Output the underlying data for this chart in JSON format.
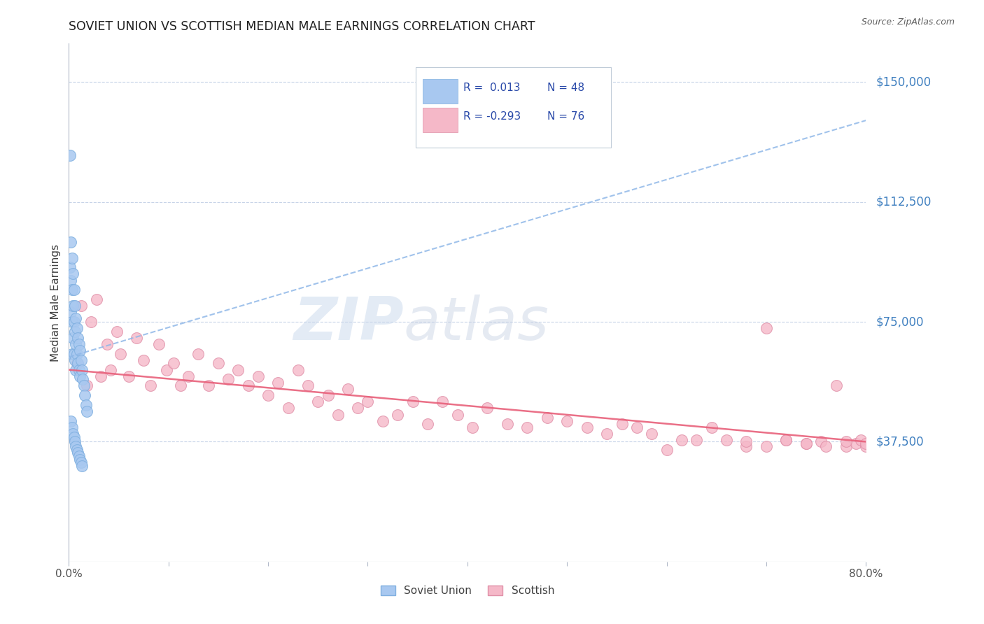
{
  "title": "SOVIET UNION VS SCOTTISH MEDIAN MALE EARNINGS CORRELATION CHART",
  "source": "Source: ZipAtlas.com",
  "ylabel": "Median Male Earnings",
  "y_tick_vals": [
    37500,
    75000,
    112500,
    150000
  ],
  "y_tick_labels": [
    "$37,500",
    "$75,000",
    "$112,500",
    "$150,000"
  ],
  "blue_color": "#a8c8f0",
  "blue_edge_color": "#80b0e0",
  "blue_line_color": "#90b8e8",
  "pink_color": "#f5b8c8",
  "pink_edge_color": "#e090a8",
  "pink_line_color": "#e8607a",
  "background_color": "#ffffff",
  "grid_color": "#c8d4e8",
  "title_color": "#202020",
  "ylabel_color": "#404040",
  "right_label_color": "#4080c0",
  "source_color": "#606060",
  "watermark_color": "#d8e4f0",
  "legend_R1": " 0.013",
  "legend_N1": "48",
  "legend_R2": "-0.293",
  "legend_N2": "76",
  "soviet_x": [
    0.001,
    0.001,
    0.002,
    0.002,
    0.002,
    0.003,
    0.003,
    0.003,
    0.003,
    0.004,
    0.004,
    0.004,
    0.005,
    0.005,
    0.005,
    0.006,
    0.006,
    0.006,
    0.007,
    0.007,
    0.007,
    0.008,
    0.008,
    0.009,
    0.009,
    0.01,
    0.01,
    0.011,
    0.011,
    0.012,
    0.013,
    0.014,
    0.015,
    0.016,
    0.017,
    0.018,
    0.002,
    0.003,
    0.004,
    0.005,
    0.006,
    0.007,
    0.008,
    0.009,
    0.01,
    0.011,
    0.012,
    0.013
  ],
  "soviet_y": [
    127000,
    92000,
    100000,
    88000,
    78000,
    95000,
    85000,
    75000,
    65000,
    90000,
    80000,
    70000,
    85000,
    75000,
    65000,
    80000,
    72000,
    63000,
    76000,
    68000,
    60000,
    73000,
    65000,
    70000,
    62000,
    68000,
    60000,
    66000,
    58000,
    63000,
    60000,
    57000,
    55000,
    52000,
    49000,
    47000,
    44000,
    42000,
    40000,
    39000,
    37500,
    36000,
    35000,
    34000,
    33000,
    32000,
    31000,
    30000
  ],
  "scottish_x": [
    0.008,
    0.012,
    0.018,
    0.022,
    0.028,
    0.032,
    0.038,
    0.042,
    0.048,
    0.052,
    0.06,
    0.068,
    0.075,
    0.082,
    0.09,
    0.098,
    0.105,
    0.112,
    0.12,
    0.13,
    0.14,
    0.15,
    0.16,
    0.17,
    0.18,
    0.19,
    0.2,
    0.21,
    0.22,
    0.23,
    0.24,
    0.25,
    0.26,
    0.27,
    0.28,
    0.29,
    0.3,
    0.315,
    0.33,
    0.345,
    0.36,
    0.375,
    0.39,
    0.405,
    0.42,
    0.44,
    0.46,
    0.48,
    0.5,
    0.52,
    0.54,
    0.555,
    0.57,
    0.585,
    0.6,
    0.615,
    0.63,
    0.645,
    0.66,
    0.68,
    0.7,
    0.72,
    0.74,
    0.755,
    0.77,
    0.78,
    0.79,
    0.795,
    0.8,
    0.8,
    0.78,
    0.76,
    0.74,
    0.72,
    0.7,
    0.68
  ],
  "scottish_y": [
    62000,
    80000,
    55000,
    75000,
    82000,
    58000,
    68000,
    60000,
    72000,
    65000,
    58000,
    70000,
    63000,
    55000,
    68000,
    60000,
    62000,
    55000,
    58000,
    65000,
    55000,
    62000,
    57000,
    60000,
    55000,
    58000,
    52000,
    56000,
    48000,
    60000,
    55000,
    50000,
    52000,
    46000,
    54000,
    48000,
    50000,
    44000,
    46000,
    50000,
    43000,
    50000,
    46000,
    42000,
    48000,
    43000,
    42000,
    45000,
    44000,
    42000,
    40000,
    43000,
    42000,
    40000,
    35000,
    38000,
    38000,
    42000,
    38000,
    36000,
    73000,
    38000,
    37000,
    37500,
    55000,
    36000,
    37000,
    38000,
    36000,
    37000,
    37500,
    36000,
    37000,
    38000,
    36000,
    37500
  ]
}
